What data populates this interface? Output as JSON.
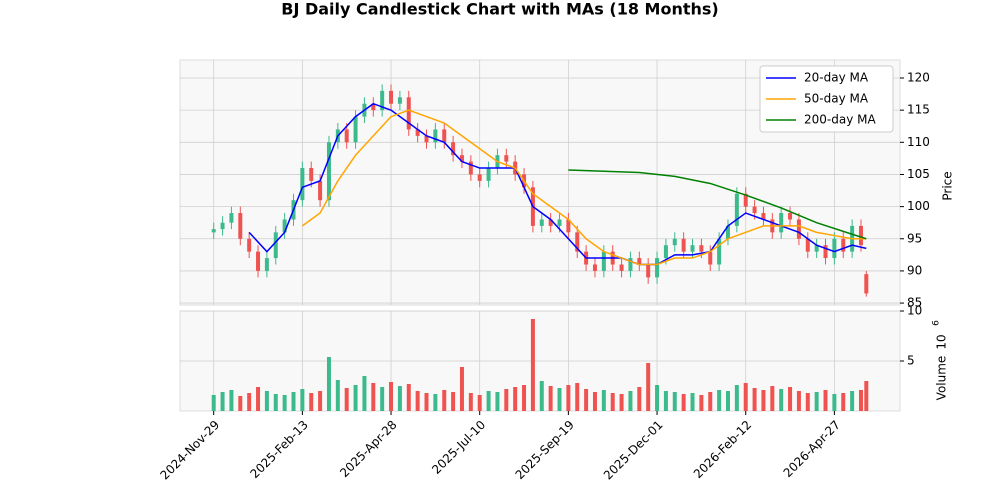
{
  "chart_data": {
    "type": "candlestick",
    "title": "BJ Daily Candlestick Chart with MAs (18 Months)",
    "ylabel": "Price",
    "x": [
      0,
      5,
      10,
      15,
      20,
      25,
      30,
      35,
      40,
      45,
      50,
      55,
      60,
      65,
      70,
      75,
      80,
      85,
      90,
      95,
      100,
      105,
      110,
      115,
      120,
      125,
      130,
      135,
      140,
      145,
      150,
      155,
      160,
      165,
      170,
      175,
      180,
      185,
      190,
      195,
      200,
      205,
      210,
      215,
      220,
      225,
      230,
      235,
      240,
      245,
      250,
      255,
      260,
      265,
      270,
      275,
      280,
      285,
      290,
      295,
      300,
      305,
      310,
      315,
      320,
      325,
      330,
      335,
      340,
      345,
      350,
      355,
      360,
      365,
      368
    ],
    "open": [
      96,
      96.5,
      97.5,
      99,
      95,
      93,
      90,
      92,
      96,
      98,
      101,
      106,
      104,
      101,
      110,
      112,
      110,
      114,
      116,
      115,
      118,
      116,
      117,
      112,
      111,
      110,
      112,
      110,
      108,
      107,
      105,
      104,
      106,
      108,
      107,
      105,
      103,
      97,
      98,
      97,
      98,
      96,
      93,
      91,
      90,
      93,
      91,
      90,
      92,
      91,
      89,
      92,
      94,
      95,
      93,
      94,
      93,
      91,
      95,
      97,
      102,
      100,
      99,
      98,
      96,
      99,
      98,
      95,
      93,
      94,
      92,
      95,
      93,
      97,
      89.5
    ],
    "high": [
      97.5,
      98.5,
      100,
      100,
      96,
      94,
      93,
      97,
      99,
      102,
      107,
      107,
      105,
      111,
      113,
      113,
      115,
      117,
      117,
      119,
      119,
      118,
      118,
      113,
      112,
      113,
      113,
      111,
      109,
      108,
      106,
      107,
      109,
      109,
      108,
      106,
      104,
      99,
      99,
      99,
      99,
      97,
      94,
      92,
      94,
      94,
      92,
      93,
      93,
      92,
      93,
      95,
      96,
      96,
      95,
      95,
      94,
      96,
      98,
      103,
      103,
      101,
      100,
      99,
      100,
      100,
      99,
      96,
      95,
      95,
      96,
      96,
      98,
      98,
      90
    ],
    "low": [
      95,
      95.5,
      96.5,
      94,
      92,
      89,
      89,
      91,
      95,
      97,
      100,
      103,
      100,
      100,
      109,
      109,
      109,
      113,
      114,
      114,
      115,
      115,
      111,
      110,
      109,
      109,
      109,
      107,
      106,
      104,
      103,
      103,
      105,
      106,
      104,
      102,
      96,
      96,
      96,
      96,
      95,
      92,
      90,
      89,
      89,
      90,
      89,
      89,
      90,
      88,
      88,
      91,
      93,
      92,
      92,
      92,
      90,
      90,
      94,
      96,
      99,
      98,
      97,
      95,
      95,
      97,
      94,
      92,
      92,
      91,
      91,
      92,
      92,
      93,
      86
    ],
    "close": [
      96.5,
      97.5,
      99,
      95,
      93,
      90,
      92,
      96,
      98,
      101,
      106,
      104,
      101,
      110,
      112,
      110,
      114,
      116,
      115,
      118,
      116,
      117,
      112,
      111,
      110,
      112,
      110,
      108,
      107,
      105,
      104,
      106,
      108,
      107,
      105,
      103,
      97,
      98,
      97,
      98,
      96,
      93,
      91,
      90,
      93,
      91,
      90,
      92,
      91,
      89,
      92,
      94,
      95,
      93,
      94,
      93,
      91,
      95,
      97,
      102,
      100,
      99,
      98,
      96,
      99,
      98,
      95,
      93,
      94,
      92,
      95,
      93,
      97,
      94,
      86.5
    ],
    "up_color": "#3dba8c",
    "down_color": "#ef5350",
    "xlim": [
      -19,
      387
    ],
    "xticks": [
      {
        "value": 0,
        "label": "2024-Nov-29"
      },
      {
        "value": 50,
        "label": "2025-Feb-13"
      },
      {
        "value": 100,
        "label": "2025-Apr-28"
      },
      {
        "value": 150,
        "label": "2025-Jul-10"
      },
      {
        "value": 200,
        "label": "2025-Sep-19"
      },
      {
        "value": 250,
        "label": "2025-Dec-01"
      },
      {
        "value": 300,
        "label": "2026-Feb-12"
      },
      {
        "value": 350,
        "label": "2026-Apr-27"
      }
    ],
    "ylim": [
      84.7,
      122.8
    ],
    "yticks": [
      85,
      90,
      95,
      100,
      105,
      110,
      115,
      120
    ],
    "grid": true,
    "legend": "upper right",
    "series": [
      {
        "name": "20-day MA",
        "color": "#0000ff",
        "x": [
          20,
          30,
          40,
          50,
          60,
          70,
          80,
          90,
          100,
          110,
          120,
          130,
          140,
          150,
          160,
          170,
          180,
          190,
          200,
          210,
          220,
          230,
          240,
          250,
          260,
          270,
          280,
          290,
          300,
          310,
          320,
          330,
          340,
          350,
          360,
          368
        ],
        "values": [
          96,
          93,
          96,
          103,
          104,
          111,
          114,
          116,
          115,
          113,
          111,
          110,
          107,
          106,
          106,
          106,
          100,
          98,
          95,
          92,
          92,
          92,
          91,
          91,
          92.5,
          92.5,
          93,
          97,
          99,
          98,
          97,
          96,
          94,
          93,
          94,
          93.5
        ]
      },
      {
        "name": "50-day MA",
        "color": "#ffa500",
        "x": [
          50,
          60,
          70,
          80,
          90,
          100,
          110,
          120,
          130,
          140,
          150,
          160,
          170,
          180,
          190,
          200,
          210,
          220,
          230,
          240,
          250,
          260,
          270,
          280,
          290,
          300,
          310,
          320,
          330,
          340,
          350,
          360,
          368
        ],
        "values": [
          97,
          99,
          104,
          108,
          111,
          114,
          115,
          114,
          113,
          111,
          109,
          107,
          106,
          102,
          100,
          98,
          95,
          93,
          92,
          91,
          91,
          92,
          92,
          93,
          95,
          96,
          97,
          97,
          97,
          96,
          95.5,
          95,
          95
        ]
      },
      {
        "name": "200-day MA",
        "color": "#008000",
        "x": [
          200,
          220,
          240,
          260,
          280,
          300,
          320,
          340,
          360,
          368
        ],
        "values": [
          105.7,
          105.5,
          105.3,
          104.7,
          103.6,
          101.8,
          99.8,
          97.5,
          95.7,
          95
        ]
      }
    ],
    "volume": {
      "ylabel": "Volume",
      "scale_base": "10",
      "scale_exponent": "6",
      "ylim": [
        0,
        10
      ],
      "yticks": [
        5,
        10
      ],
      "values": [
        1.6,
        1.9,
        2.1,
        1.5,
        1.8,
        2.4,
        2.0,
        1.7,
        1.6,
        1.9,
        2.2,
        1.8,
        2.0,
        5.4,
        3.1,
        2.3,
        2.6,
        3.5,
        2.8,
        2.4,
        2.9,
        2.5,
        2.7,
        2.0,
        1.8,
        1.7,
        2.1,
        1.9,
        4.4,
        1.8,
        1.6,
        2.0,
        1.9,
        2.2,
        2.4,
        2.6,
        9.2,
        3.0,
        2.5,
        2.3,
        2.6,
        2.8,
        2.2,
        1.9,
        2.1,
        1.8,
        1.7,
        2.0,
        2.4,
        4.8,
        2.6,
        2.0,
        1.9,
        1.7,
        1.8,
        1.6,
        1.9,
        2.1,
        2.0,
        2.6,
        2.8,
        2.3,
        2.1,
        2.5,
        2.2,
        2.4,
        2.0,
        1.8,
        1.9,
        2.1,
        1.7,
        1.8,
        2.0,
        2.1,
        3.0
      ]
    }
  }
}
